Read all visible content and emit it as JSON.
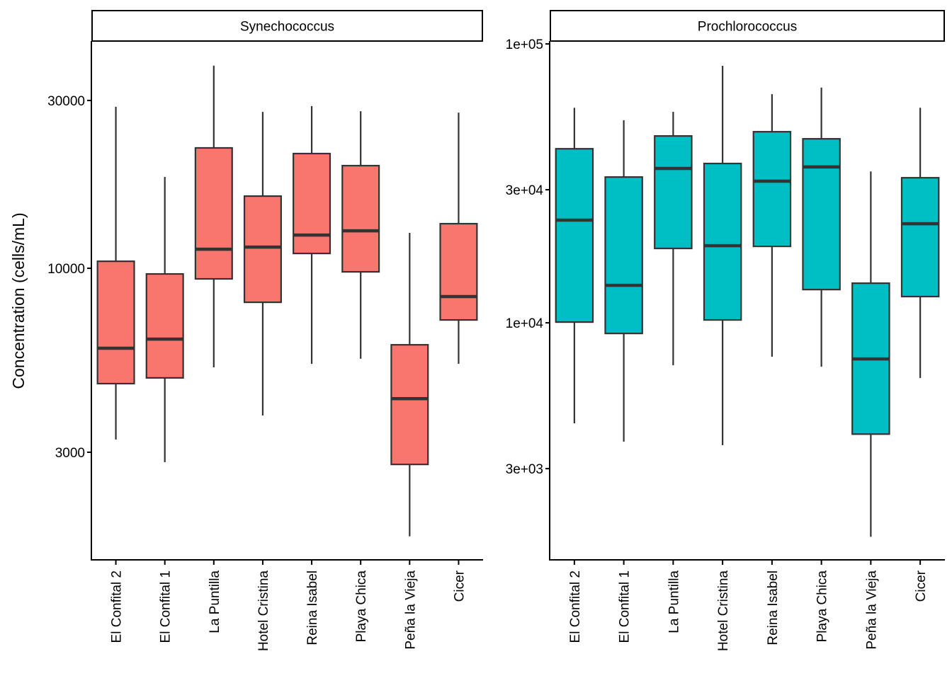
{
  "chart_data": {
    "type": "boxplot",
    "ylabel": "Concentration (cells/mL)",
    "xlabel": "",
    "yscale": "log10",
    "colors": {
      "box_outline": "#333333",
      "axis": "#000000"
    },
    "categories": [
      "El Confital 2",
      "El Confital 1",
      "La Puntilla",
      "Hotel Cristina",
      "Reina Isabel",
      "Playa Chica",
      "Peña la Vieja",
      "Cicer"
    ],
    "panels": [
      {
        "title": "Synechococcus",
        "fill": "#F8766D",
        "ylim": [
          1483,
          44260
        ],
        "yticks": [
          3000,
          10000,
          30000
        ],
        "ytick_labels": [
          "3000",
          "10000",
          "30000"
        ],
        "boxes": [
          {
            "category": "El Confital 2",
            "whisker_low": 3260,
            "q1": 4700,
            "median": 5925,
            "q3": 10470,
            "whisker_high": 28780
          },
          {
            "category": "El Confital 1",
            "whisker_low": 2810,
            "q1": 4880,
            "median": 6290,
            "q3": 9636,
            "whisker_high": 18180
          },
          {
            "category": "La Puntilla",
            "whisker_low": 5230,
            "q1": 9330,
            "median": 11330,
            "q3": 21990,
            "whisker_high": 37670
          },
          {
            "category": "Hotel Cristina",
            "whisker_low": 3815,
            "q1": 8005,
            "median": 11490,
            "q3": 16040,
            "whisker_high": 27830
          },
          {
            "category": "Reina Isabel",
            "whisker_low": 5350,
            "q1": 11020,
            "median": 12430,
            "q3": 21190,
            "whisker_high": 28910
          },
          {
            "category": "Playa Chica",
            "whisker_low": 5530,
            "q1": 9770,
            "median": 12780,
            "q3": 19580,
            "whisker_high": 27960
          },
          {
            "category": "Peña la Vieja",
            "whisker_low": 1730,
            "q1": 2770,
            "median": 4260,
            "q3": 6060,
            "whisker_high": 12610
          },
          {
            "category": "Cicer",
            "whisker_low": 5350,
            "q1": 7130,
            "median": 8310,
            "q3": 13390,
            "whisker_high": 27700
          }
        ]
      },
      {
        "title": "Prochlorococcus",
        "fill": "#00BFC4",
        "ylim": [
          1413,
          102400
        ],
        "yticks": [
          3000,
          10000,
          30000,
          100000
        ],
        "ytick_labels": [
          "3e+03",
          "1e+04",
          "3e+04",
          "1e+05"
        ],
        "boxes": [
          {
            "category": "El Confital 2",
            "whisker_low": 4360,
            "q1": 10060,
            "median": 23340,
            "q3": 42080,
            "whisker_high": 59020
          },
          {
            "category": "El Confital 1",
            "whisker_low": 3750,
            "q1": 9160,
            "median": 13630,
            "q3": 33320,
            "whisker_high": 53250
          },
          {
            "category": "La Puntilla",
            "whisker_low": 7040,
            "q1": 18480,
            "median": 35770,
            "q3": 46770,
            "whisker_high": 57070
          },
          {
            "category": "Hotel Cristina",
            "whisker_low": 3640,
            "q1": 10240,
            "median": 18910,
            "q3": 37260,
            "whisker_high": 83440
          },
          {
            "category": "Reina Isabel",
            "whisker_low": 7560,
            "q1": 18800,
            "median": 32200,
            "q3": 48430,
            "whisker_high": 66040
          },
          {
            "category": "Playa Chica",
            "whisker_low": 6960,
            "q1": 13160,
            "median": 36220,
            "q3": 45680,
            "whisker_high": 69730
          },
          {
            "category": "Peña la Vieja",
            "whisker_low": 1710,
            "q1": 3990,
            "median": 7420,
            "q3": 13870,
            "whisker_high": 34880
          },
          {
            "category": "Cicer",
            "whisker_low": 6340,
            "q1": 12420,
            "median": 22660,
            "q3": 33120,
            "whisker_high": 59020
          }
        ]
      }
    ]
  }
}
